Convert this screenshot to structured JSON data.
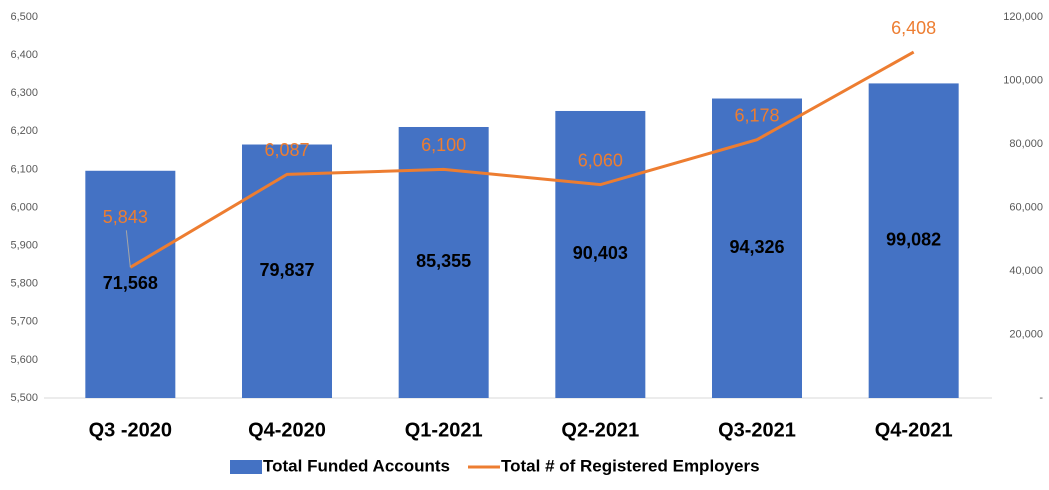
{
  "chart_data": {
    "type": "combo",
    "categories": [
      "Q3 -2020",
      "Q4-2020",
      "Q1-2021",
      "Q2-2021",
      "Q3-2021",
      "Q4-2021"
    ],
    "series": [
      {
        "name": "Total Funded Accounts",
        "type": "bar",
        "axis": "y2",
        "color": "#4472c4",
        "values": [
          71568,
          79837,
          85355,
          90403,
          94326,
          99082
        ],
        "value_labels": [
          "71,568",
          "79,837",
          "85,355",
          "90,403",
          "94,326",
          "99,082"
        ]
      },
      {
        "name": "Total # of Registered Employers",
        "type": "line",
        "axis": "y",
        "color": "#ed7d31",
        "values": [
          5843,
          6087,
          6100,
          6060,
          6178,
          6408
        ],
        "value_labels": [
          "5,843",
          "6,087",
          "6,100",
          "6,060",
          "6,178",
          "6,408"
        ]
      }
    ],
    "ylim": [
      5500,
      6500
    ],
    "yticks": [
      {
        "value": 5500,
        "label": "5,500"
      },
      {
        "value": 5600,
        "label": "5,600"
      },
      {
        "value": 5700,
        "label": "5,700"
      },
      {
        "value": 5800,
        "label": "5,800"
      },
      {
        "value": 5900,
        "label": "5,900"
      },
      {
        "value": 6000,
        "label": "6,000"
      },
      {
        "value": 6100,
        "label": "6,100"
      },
      {
        "value": 6200,
        "label": "6,200"
      },
      {
        "value": 6300,
        "label": "6,300"
      },
      {
        "value": 6400,
        "label": "6,400"
      },
      {
        "value": 6500,
        "label": "6,500"
      }
    ],
    "y2lim": [
      0,
      120000
    ],
    "y2ticks": [
      {
        "value": 0,
        "label": "-"
      },
      {
        "value": 20000,
        "label": "20,000"
      },
      {
        "value": 40000,
        "label": "40,000"
      },
      {
        "value": 60000,
        "label": "60,000"
      },
      {
        "value": 80000,
        "label": "80,000"
      },
      {
        "value": 100000,
        "label": "100,000"
      },
      {
        "value": 120000,
        "label": "120,000"
      }
    ],
    "legend": "bottom"
  }
}
